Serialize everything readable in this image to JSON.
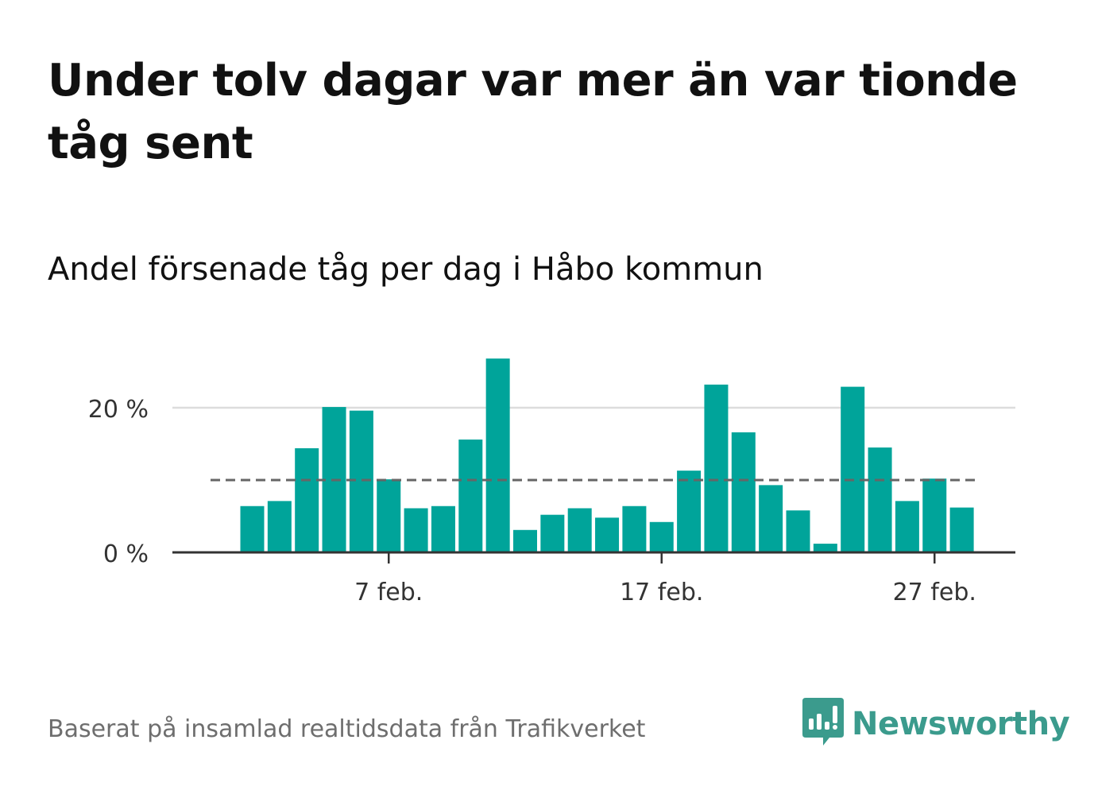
{
  "title": "Under tolv dagar var mer än var tionde tåg sent",
  "subtitle": "Andel försenade tåg per dag i Håbo kommun",
  "footer": "Baserat på insamlad realtidsdata från Trafikverket",
  "logo": {
    "text": "Newsworthy",
    "icon": "newsworthy-bar-chart-icon"
  },
  "colors": {
    "bar": "#00a49a",
    "reference_line": "#666666",
    "grid": "#dddddd",
    "axis": "#333333"
  },
  "chart_data": {
    "type": "bar",
    "x": [
      "2 feb.",
      "3 feb.",
      "4 feb.",
      "5 feb.",
      "6 feb.",
      "7 feb.",
      "8 feb.",
      "9 feb.",
      "10 feb.",
      "11 feb.",
      "12 feb.",
      "13 feb.",
      "14 feb.",
      "15 feb.",
      "16 feb.",
      "17 feb.",
      "18 feb.",
      "19 feb.",
      "20 feb.",
      "21 feb.",
      "22 feb.",
      "23 feb.",
      "24 feb.",
      "25 feb.",
      "26 feb.",
      "27 feb.",
      "28 feb."
    ],
    "values": [
      6.4,
      7.1,
      14.4,
      20.1,
      19.6,
      10.1,
      6.1,
      6.4,
      15.6,
      26.8,
      3.1,
      5.2,
      6.1,
      4.8,
      6.4,
      4.2,
      11.3,
      23.2,
      16.6,
      9.3,
      5.8,
      1.2,
      22.9,
      14.5,
      7.1,
      10.2,
      6.2
    ],
    "reference_line": 10,
    "ylim": [
      0,
      28
    ],
    "yticks": [
      0,
      20
    ],
    "ytick_labels": [
      "0 %",
      "20 %"
    ],
    "xticks": [
      "7 feb.",
      "17 feb.",
      "27 feb."
    ],
    "grid": true
  }
}
